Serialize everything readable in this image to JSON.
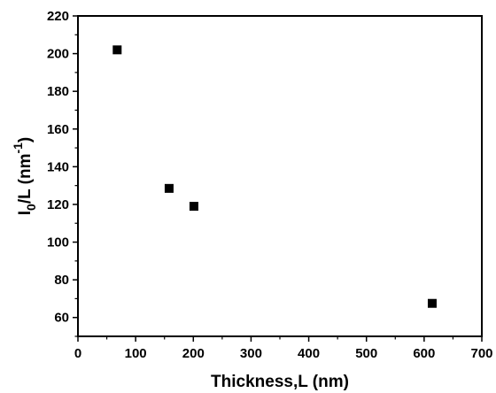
{
  "chart_data": {
    "type": "scatter",
    "xlabel": "Thickness,L (nm)",
    "ylabel": {
      "main": "I",
      "sub": "0",
      "rest": "/L (nm",
      "sup": "-1",
      "close": ")"
    },
    "xlim": [
      0,
      700
    ],
    "ylim": [
      50,
      220
    ],
    "xticks": [
      0,
      100,
      200,
      300,
      400,
      500,
      600,
      700
    ],
    "yticks": [
      60,
      80,
      100,
      120,
      140,
      160,
      180,
      200,
      220
    ],
    "grid": false,
    "legend": "none",
    "marker": "square",
    "marker_color": "#000000",
    "series": [
      {
        "points": [
          {
            "x": 68,
            "y": 202
          },
          {
            "x": 158,
            "y": 128.5
          },
          {
            "x": 201,
            "y": 119
          },
          {
            "x": 614,
            "y": 67.5
          }
        ]
      }
    ]
  }
}
